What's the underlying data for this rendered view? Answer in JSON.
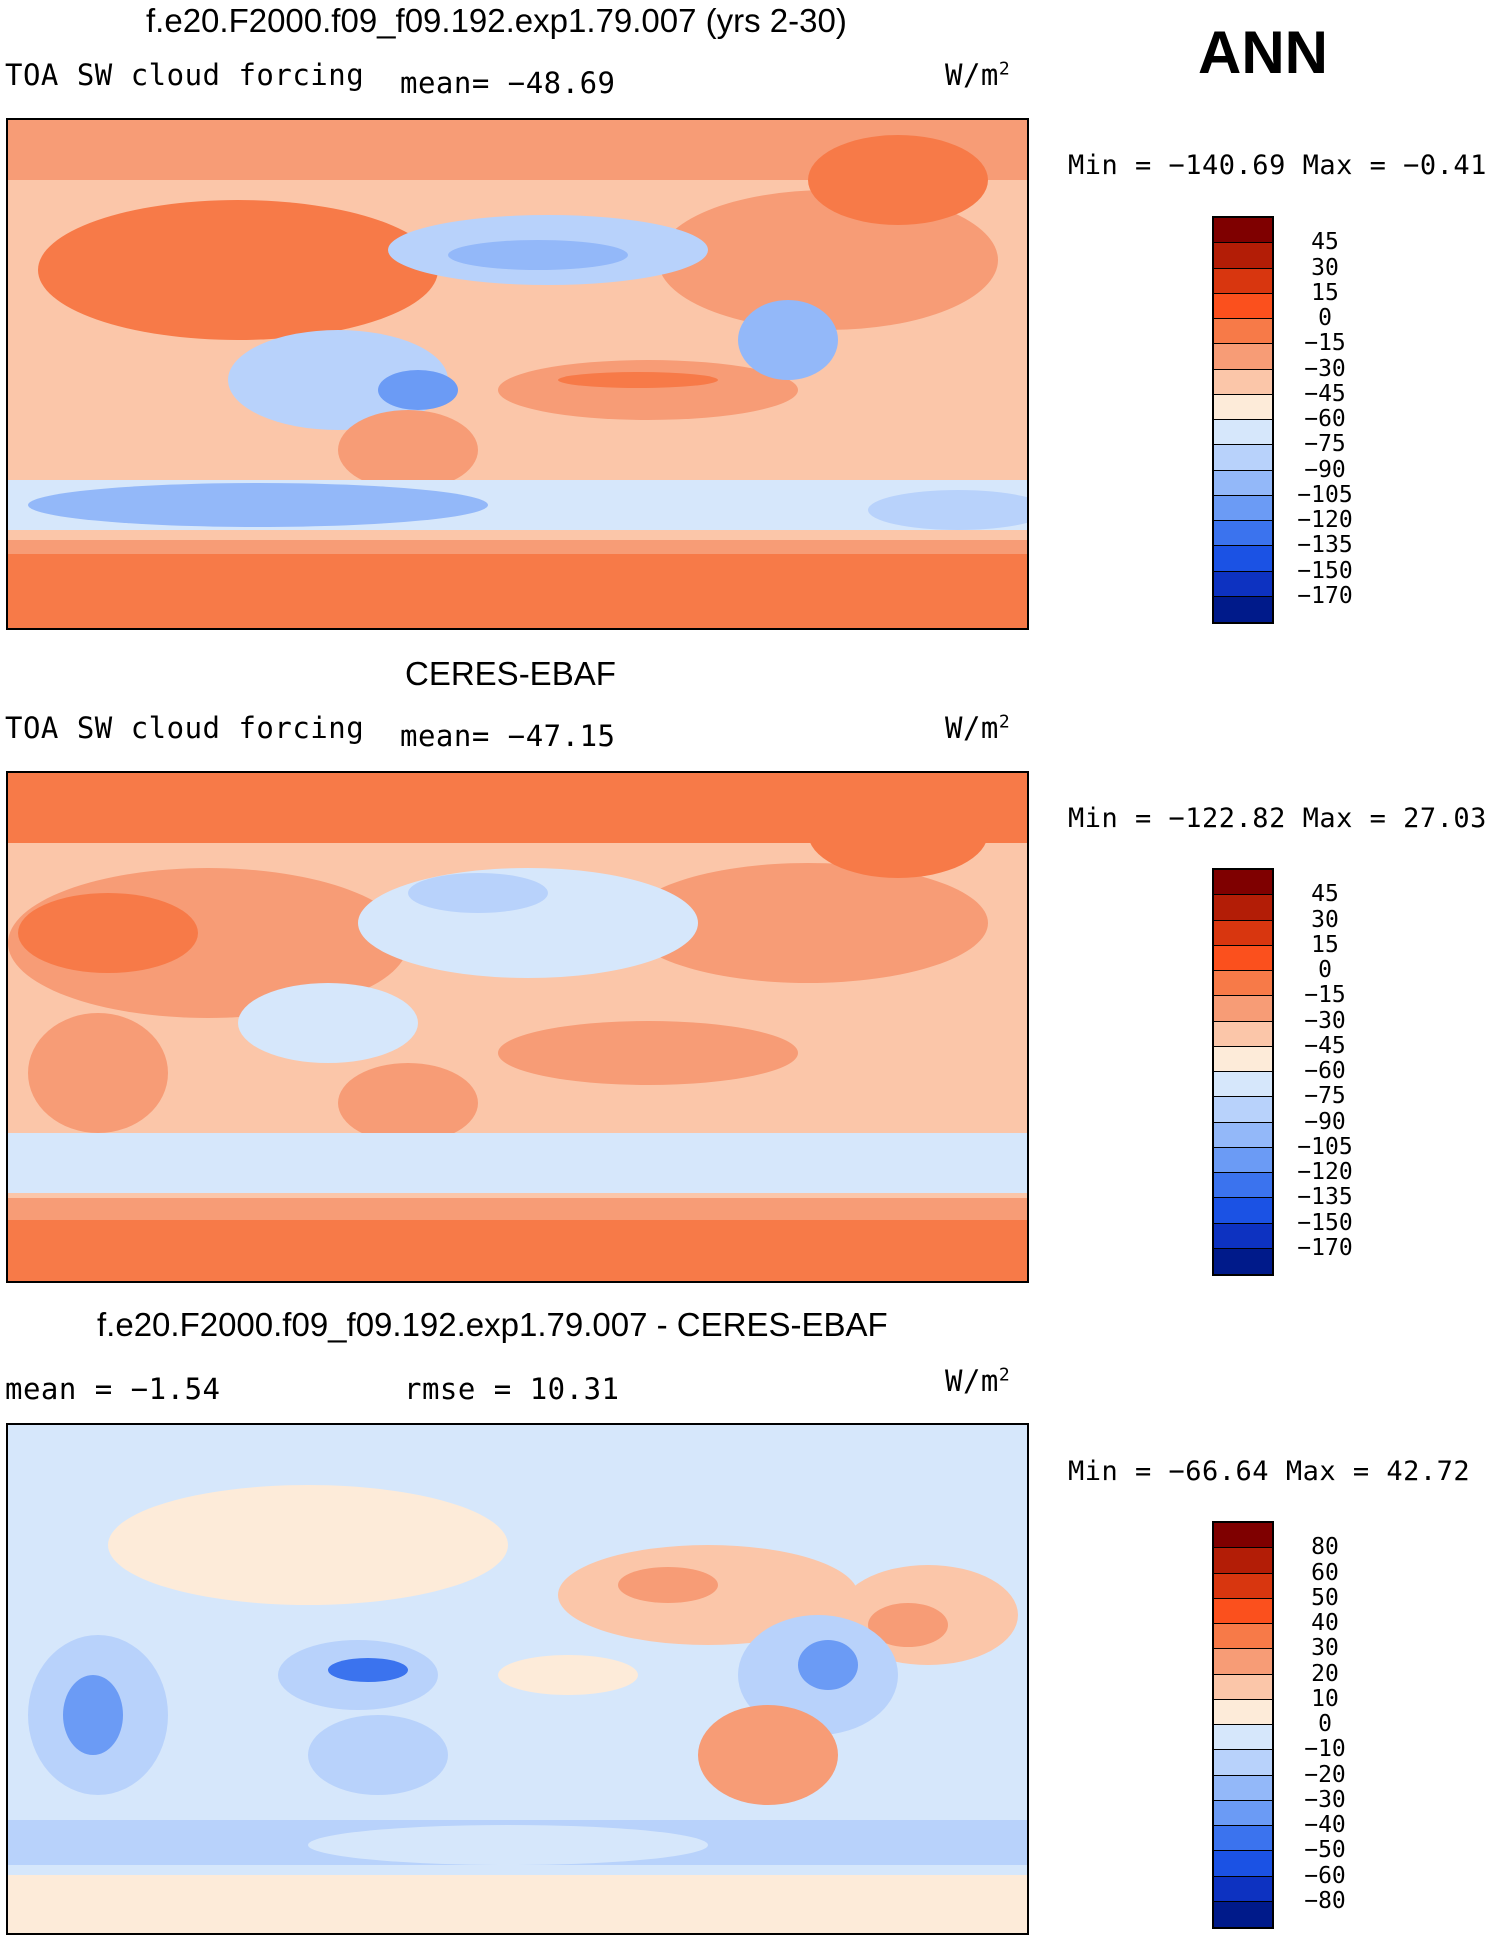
{
  "season": "ANN",
  "panels": [
    {
      "title": "f.e20.F2000.f09_f09.192.exp1.79.007 (yrs 2-30)",
      "left_text": "TOA SW cloud forcing",
      "center_text": "mean= −48.69",
      "units": "W/m",
      "units_sup": "2",
      "minmax": "Min  =  −140.69  Max  =    −0.41",
      "colorbar_labels": [
        "45",
        "30",
        "15",
        "0",
        "−15",
        "−30",
        "−45",
        "−60",
        "−75",
        "−90",
        "−105",
        "−120",
        "−135",
        "−150",
        "−170"
      ],
      "colors": [
        "#7f0000",
        "#b31d06",
        "#d8360f",
        "#fb501d",
        "#f77a48",
        "#f79c76",
        "#fbc6a9",
        "#fdebd9",
        "#d6e7fb",
        "#b8d2fb",
        "#93b8f9",
        "#6b9bf5",
        "#3b73ee",
        "#1b52e4",
        "#0d32c1",
        "#001a8a"
      ]
    },
    {
      "title": "CERES-EBAF",
      "left_text": "TOA SW cloud forcing",
      "center_text": "mean= −47.15",
      "units": "W/m",
      "units_sup": "2",
      "minmax": "Min  =  −122.82  Max  =    27.03",
      "colorbar_labels": [
        "45",
        "30",
        "15",
        "0",
        "−15",
        "−30",
        "−45",
        "−60",
        "−75",
        "−90",
        "−105",
        "−120",
        "−135",
        "−150",
        "−170"
      ],
      "colors": [
        "#7f0000",
        "#b31d06",
        "#d8360f",
        "#fb501d",
        "#f77a48",
        "#f79c76",
        "#fbc6a9",
        "#fdebd9",
        "#d6e7fb",
        "#b8d2fb",
        "#93b8f9",
        "#6b9bf5",
        "#3b73ee",
        "#1b52e4",
        "#0d32c1",
        "#001a8a"
      ]
    },
    {
      "title": "f.e20.F2000.f09_f09.192.exp1.79.007 - CERES-EBAF",
      "left_text": "mean  =   −1.54",
      "center_text": "rmse  =   10.31",
      "units": "W/m",
      "units_sup": "2",
      "minmax": "Min  =  −66.64  Max  =   42.72",
      "colorbar_labels": [
        "80",
        "60",
        "50",
        "40",
        "30",
        "20",
        "10",
        "0",
        "−10",
        "−20",
        "−30",
        "−40",
        "−50",
        "−60",
        "−80"
      ],
      "colors": [
        "#7f0000",
        "#b31d06",
        "#d8360f",
        "#fb501d",
        "#f77a48",
        "#f79c76",
        "#fbc6a9",
        "#fdebd9",
        "#d6e7fb",
        "#b8d2fb",
        "#93b8f9",
        "#6b9bf5",
        "#3b73ee",
        "#1b52e4",
        "#0d32c1",
        "#001a8a"
      ]
    }
  ]
}
